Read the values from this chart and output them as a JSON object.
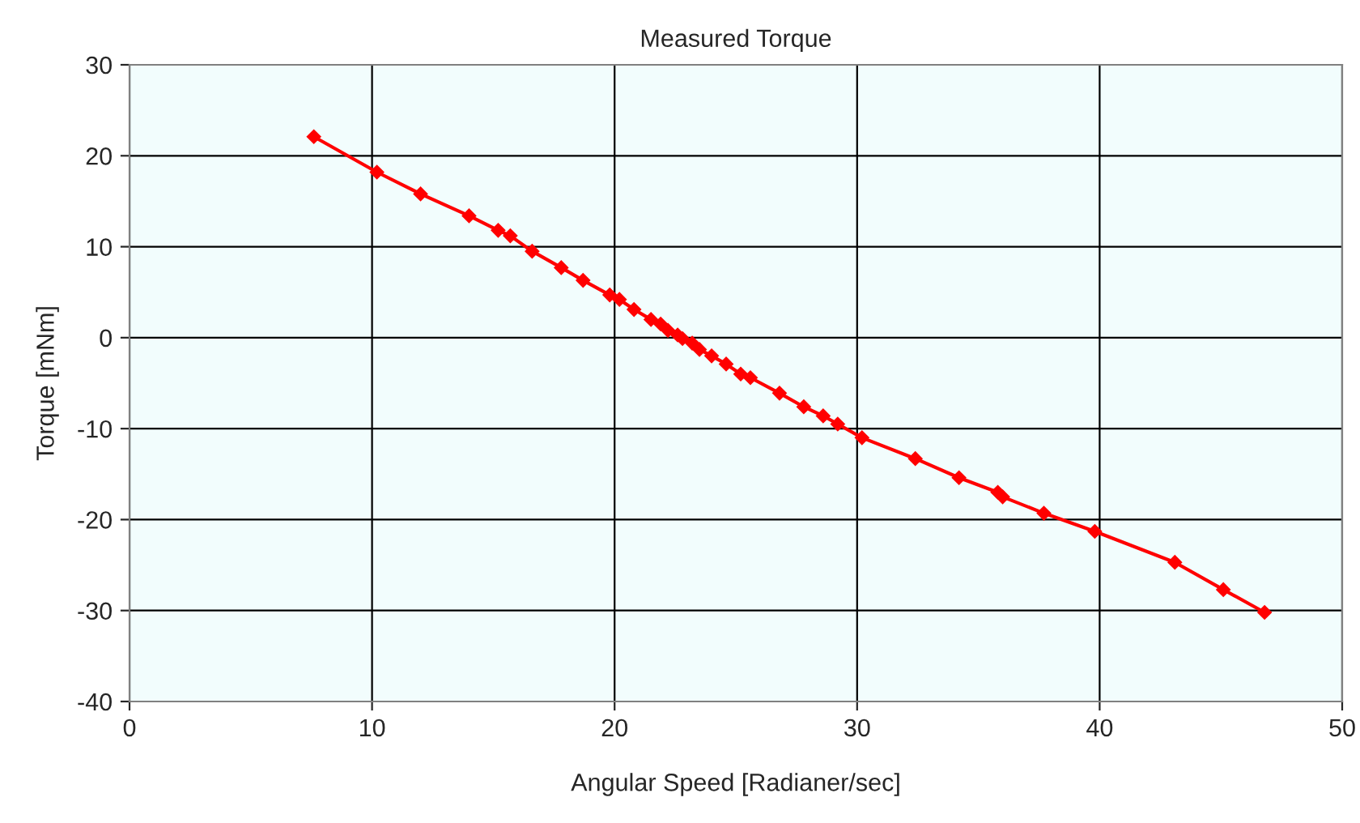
{
  "chart_data": {
    "type": "line",
    "title": "Measured Torque",
    "xlabel": "Angular Speed [Radianer/sec]",
    "ylabel": "Torque [mNm]",
    "x": [
      7.6,
      10.2,
      12.0,
      14.0,
      15.2,
      15.7,
      16.6,
      17.8,
      18.7,
      19.8,
      20.2,
      20.8,
      21.5,
      21.9,
      22.2,
      22.6,
      22.8,
      23.2,
      23.5,
      24.0,
      24.6,
      25.2,
      25.6,
      26.8,
      27.8,
      28.6,
      29.2,
      30.2,
      32.4,
      34.2,
      35.8,
      36.0,
      37.7,
      39.8,
      43.1,
      45.1,
      46.8
    ],
    "series": [
      {
        "color": "#ff0000",
        "values": [
          22.1,
          18.2,
          15.8,
          13.4,
          11.8,
          11.2,
          9.5,
          7.7,
          6.3,
          4.7,
          4.2,
          3.1,
          2.0,
          1.5,
          0.8,
          0.3,
          -0.1,
          -0.6,
          -1.3,
          -2.0,
          -2.9,
          -4.0,
          -4.4,
          -6.1,
          -7.6,
          -8.6,
          -9.5,
          -11.0,
          -13.3,
          -15.4,
          -17.0,
          -17.5,
          -19.3,
          -21.3,
          -24.7,
          -27.7,
          -30.2
        ]
      }
    ],
    "xlim": [
      0,
      50
    ],
    "xticks": [
      0,
      10,
      20,
      30,
      40,
      50
    ],
    "ylim": [
      -40,
      30
    ],
    "yticks": [
      -40,
      -30,
      -20,
      -10,
      0,
      10,
      20,
      30
    ],
    "grid": true,
    "legend": false,
    "marker": "diamond",
    "line_style": "solid"
  }
}
